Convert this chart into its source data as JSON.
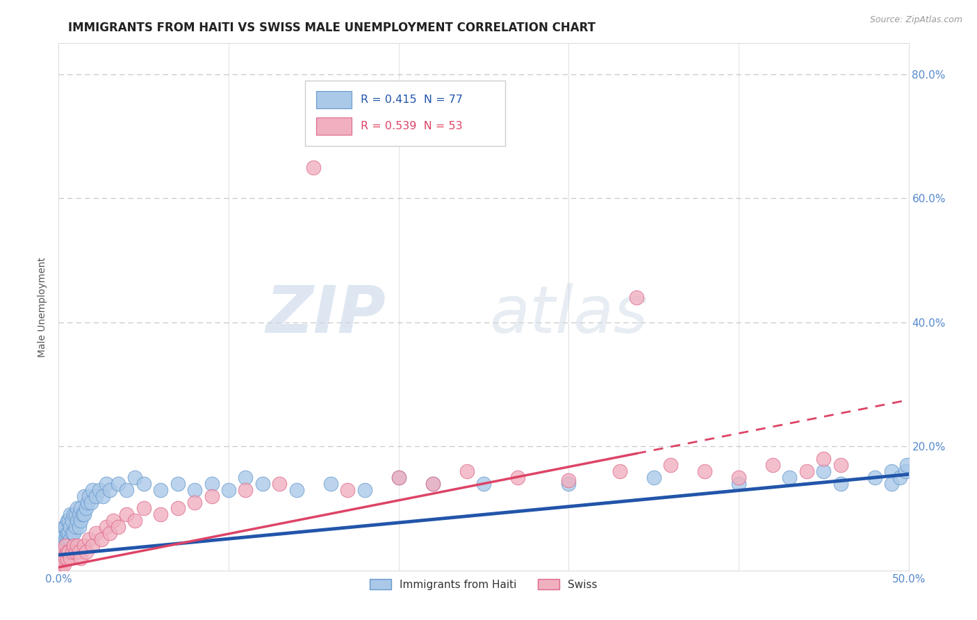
{
  "title": "IMMIGRANTS FROM HAITI VS SWISS MALE UNEMPLOYMENT CORRELATION CHART",
  "source_text": "Source: ZipAtlas.com",
  "ylabel": "Male Unemployment",
  "xlim": [
    0.0,
    0.5
  ],
  "ylim": [
    0.0,
    0.85
  ],
  "xticks": [
    0.0,
    0.1,
    0.2,
    0.3,
    0.4,
    0.5
  ],
  "xticklabels": [
    "0.0%",
    "",
    "",
    "",
    "",
    "50.0%"
  ],
  "yticks": [
    0.0,
    0.2,
    0.4,
    0.6,
    0.8
  ],
  "yticklabels": [
    "",
    "20.0%",
    "40.0%",
    "60.0%",
    "80.0%"
  ],
  "grid_color": "#c8c8c8",
  "background_color": "#ffffff",
  "watermark": "ZIPatlas",
  "series": [
    {
      "name": "Immigrants from Haiti",
      "R": 0.415,
      "N": 77,
      "color": "#aac8e8",
      "edge_color": "#6699cc",
      "trend_color": "#2255aa",
      "trend_solid": true,
      "x": [
        0.0005,
        0.001,
        0.001,
        0.0015,
        0.002,
        0.002,
        0.0025,
        0.003,
        0.003,
        0.003,
        0.004,
        0.004,
        0.004,
        0.005,
        0.005,
        0.005,
        0.005,
        0.006,
        0.006,
        0.006,
        0.007,
        0.007,
        0.007,
        0.008,
        0.008,
        0.009,
        0.009,
        0.01,
        0.01,
        0.011,
        0.011,
        0.012,
        0.012,
        0.013,
        0.013,
        0.014,
        0.015,
        0.015,
        0.016,
        0.017,
        0.018,
        0.019,
        0.02,
        0.022,
        0.024,
        0.026,
        0.028,
        0.03,
        0.035,
        0.04,
        0.045,
        0.05,
        0.06,
        0.07,
        0.08,
        0.09,
        0.1,
        0.11,
        0.12,
        0.14,
        0.16,
        0.18,
        0.2,
        0.22,
        0.25,
        0.3,
        0.35,
        0.4,
        0.43,
        0.45,
        0.46,
        0.48,
        0.49,
        0.49,
        0.495,
        0.498,
        0.499
      ],
      "y": [
        0.02,
        0.03,
        0.05,
        0.03,
        0.04,
        0.06,
        0.04,
        0.04,
        0.06,
        0.07,
        0.04,
        0.05,
        0.07,
        0.04,
        0.05,
        0.06,
        0.08,
        0.05,
        0.06,
        0.08,
        0.05,
        0.07,
        0.09,
        0.06,
        0.08,
        0.06,
        0.09,
        0.07,
        0.09,
        0.08,
        0.1,
        0.07,
        0.09,
        0.08,
        0.1,
        0.09,
        0.09,
        0.12,
        0.1,
        0.11,
        0.12,
        0.11,
        0.13,
        0.12,
        0.13,
        0.12,
        0.14,
        0.13,
        0.14,
        0.13,
        0.15,
        0.14,
        0.13,
        0.14,
        0.13,
        0.14,
        0.13,
        0.15,
        0.14,
        0.13,
        0.14,
        0.13,
        0.15,
        0.14,
        0.14,
        0.14,
        0.15,
        0.14,
        0.15,
        0.16,
        0.14,
        0.15,
        0.16,
        0.14,
        0.15,
        0.16,
        0.17
      ],
      "trend_x": [
        0.0,
        0.5
      ],
      "trend_y": [
        0.025,
        0.155
      ]
    },
    {
      "name": "Swiss",
      "R": 0.539,
      "N": 53,
      "color": "#f0b0c0",
      "edge_color": "#dd6688",
      "trend_color": "#dd4466",
      "trend_solid": false,
      "x": [
        0.0005,
        0.001,
        0.0015,
        0.002,
        0.0025,
        0.003,
        0.004,
        0.004,
        0.005,
        0.005,
        0.006,
        0.007,
        0.008,
        0.009,
        0.01,
        0.011,
        0.012,
        0.013,
        0.015,
        0.016,
        0.018,
        0.02,
        0.022,
        0.025,
        0.028,
        0.03,
        0.032,
        0.035,
        0.04,
        0.045,
        0.05,
        0.06,
        0.07,
        0.08,
        0.09,
        0.11,
        0.13,
        0.15,
        0.17,
        0.2,
        0.22,
        0.24,
        0.27,
        0.3,
        0.33,
        0.34,
        0.36,
        0.38,
        0.4,
        0.42,
        0.44,
        0.45,
        0.46
      ],
      "y": [
        0.01,
        0.02,
        0.01,
        0.03,
        0.02,
        0.01,
        0.02,
        0.04,
        0.02,
        0.03,
        0.03,
        0.02,
        0.03,
        0.04,
        0.03,
        0.04,
        0.03,
        0.02,
        0.04,
        0.03,
        0.05,
        0.04,
        0.06,
        0.05,
        0.07,
        0.06,
        0.08,
        0.07,
        0.09,
        0.08,
        0.1,
        0.09,
        0.1,
        0.11,
        0.12,
        0.13,
        0.14,
        0.65,
        0.13,
        0.15,
        0.14,
        0.16,
        0.15,
        0.145,
        0.16,
        0.44,
        0.17,
        0.16,
        0.15,
        0.17,
        0.16,
        0.18,
        0.17
      ],
      "trend_x": [
        0.0,
        0.5
      ],
      "trend_y": [
        0.005,
        0.275
      ]
    }
  ],
  "title_fontsize": 12,
  "axis_label_fontsize": 10,
  "tick_fontsize": 11,
  "tick_color": "#5588cc",
  "axis_color": "#dddddd"
}
